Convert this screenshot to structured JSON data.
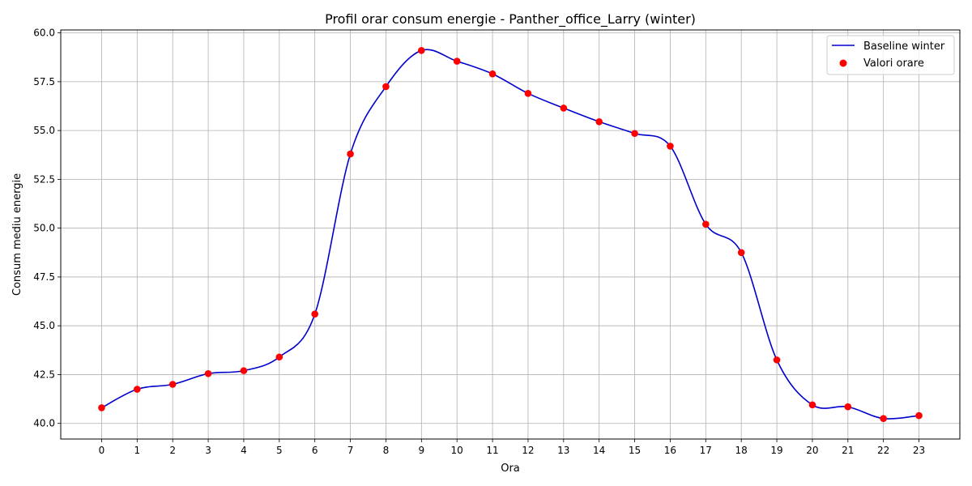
{
  "chart_data": {
    "type": "line",
    "title": "Profil orar consum energie - Panther_office_Larry (winter)",
    "xlabel": "Ora",
    "ylabel": "Consum mediu energie",
    "x": [
      0,
      1,
      2,
      3,
      4,
      5,
      6,
      7,
      8,
      9,
      10,
      11,
      12,
      13,
      14,
      15,
      16,
      17,
      18,
      19,
      20,
      21,
      22,
      23
    ],
    "x_ticks": [
      "0",
      "1",
      "2",
      "3",
      "4",
      "5",
      "6",
      "7",
      "8",
      "9",
      "10",
      "11",
      "12",
      "13",
      "14",
      "15",
      "16",
      "17",
      "18",
      "19",
      "20",
      "21",
      "22",
      "23"
    ],
    "xlim": [
      -1.15,
      24.15
    ],
    "ylim": [
      39.2,
      60.15
    ],
    "y_ticks": [
      40.0,
      42.5,
      45.0,
      47.5,
      50.0,
      52.5,
      55.0,
      57.5,
      60.0
    ],
    "y_tick_labels": [
      "40.0",
      "42.5",
      "45.0",
      "47.5",
      "50.0",
      "52.5",
      "55.0",
      "57.5",
      "60.0"
    ],
    "grid": true,
    "legend_placement": "top-right",
    "series": [
      {
        "name": "Baseline winter",
        "kind": "line",
        "color": "#0000cc",
        "values": [
          40.8,
          41.75,
          42.0,
          42.55,
          42.7,
          43.4,
          45.6,
          53.8,
          57.25,
          59.1,
          58.55,
          57.9,
          56.9,
          56.15,
          55.45,
          54.85,
          54.2,
          50.2,
          48.75,
          43.25,
          40.95,
          40.85,
          40.25,
          40.4
        ]
      },
      {
        "name": "Valori orare",
        "kind": "scatter",
        "color": "#ff0000",
        "values": [
          40.8,
          41.75,
          42.0,
          42.55,
          42.7,
          43.4,
          45.6,
          53.8,
          57.25,
          59.1,
          58.55,
          57.9,
          56.9,
          56.15,
          55.45,
          54.85,
          54.2,
          50.2,
          48.75,
          43.25,
          40.95,
          40.85,
          40.25,
          40.4
        ]
      }
    ]
  }
}
